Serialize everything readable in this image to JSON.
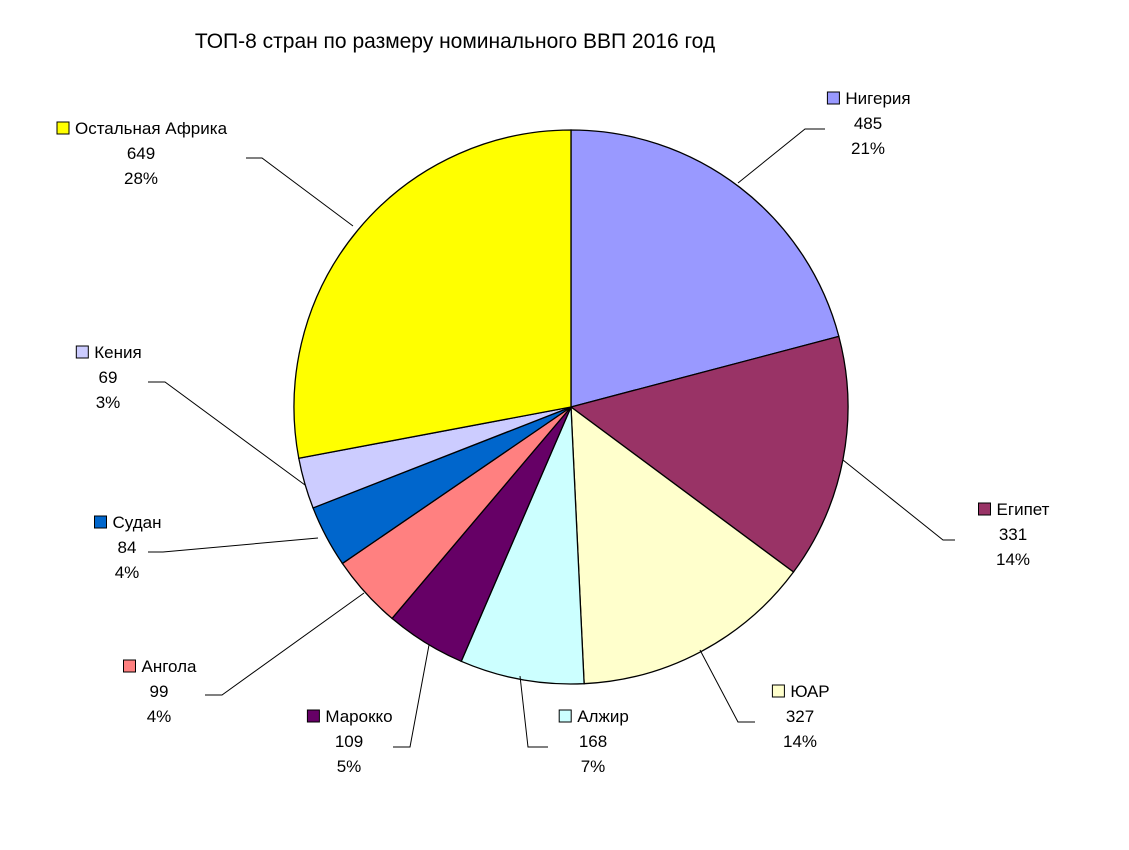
{
  "chart_data": {
    "type": "pie",
    "title": "ТОП-8 стран по размеру номинального ВВП 2016 год",
    "start_angle_deg": 0,
    "direction": "clockwise",
    "slices": [
      {
        "name": "Нигерия",
        "value": 485,
        "percent": "21%",
        "color": "#9999ff"
      },
      {
        "name": "Египет",
        "value": 331,
        "percent": "14%",
        "color": "#993366"
      },
      {
        "name": "ЮАР",
        "value": 327,
        "percent": "14%",
        "color": "#ffffcc"
      },
      {
        "name": "Алжир",
        "value": 168,
        "percent": "7%",
        "color": "#ccffff"
      },
      {
        "name": "Марокко",
        "value": 109,
        "percent": "5%",
        "color": "#660066"
      },
      {
        "name": "Ангола",
        "value": 99,
        "percent": "4%",
        "color": "#ff8080"
      },
      {
        "name": "Судан",
        "value": 84,
        "percent": "4%",
        "color": "#0066cc"
      },
      {
        "name": "Кения",
        "value": 69,
        "percent": "3%",
        "color": "#ccccff"
      },
      {
        "name": "Остальная Африка",
        "value": 649,
        "percent": "28%",
        "color": "#ffff00"
      }
    ]
  }
}
